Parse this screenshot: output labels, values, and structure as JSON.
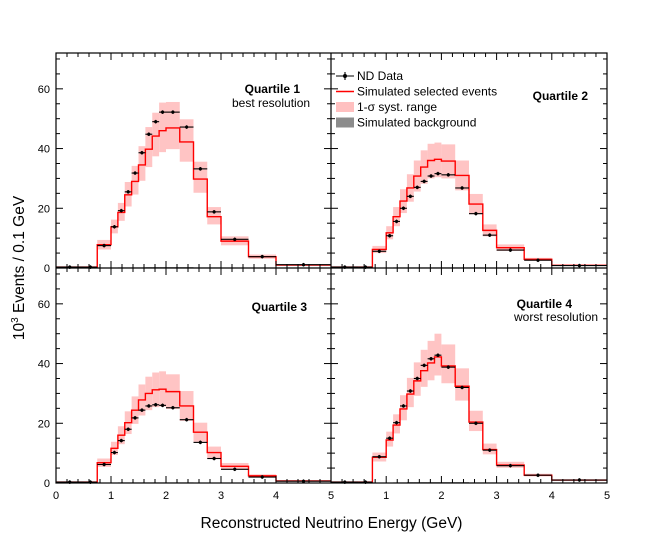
{
  "chart_data": {
    "type": "step-histogram-grid",
    "xlabel": "Reconstructed Neutrino Energy (GeV)",
    "ylabel_pre": "10",
    "ylabel_exp": "3",
    "ylabel_post": " Events / 0.1 GeV",
    "xlim": [
      0,
      5
    ],
    "ylim": [
      0,
      72
    ],
    "xticks": [
      0,
      1,
      2,
      3,
      4,
      5
    ],
    "yticks": [
      0,
      20,
      40,
      60
    ],
    "legend": {
      "placement": "top-right of upper-left panel",
      "entries": [
        {
          "key": "data",
          "label": "ND Data",
          "color": "#000000"
        },
        {
          "key": "mc",
          "label": "Simulated selected events",
          "color": "#ff0000"
        },
        {
          "key": "syst",
          "label": "1-σ syst. range",
          "color": "#ffc0c0"
        },
        {
          "key": "bkg",
          "label": "Simulated background",
          "color": "#8c8c8c"
        }
      ]
    },
    "bin_edges": [
      0,
      0.5,
      0.75,
      1.0,
      1.125,
      1.25,
      1.375,
      1.5,
      1.625,
      1.75,
      1.875,
      2.0,
      2.25,
      2.5,
      2.75,
      3.0,
      3.5,
      4.0,
      5.0
    ],
    "panels": [
      {
        "id": "q1",
        "title": "Quartile 1",
        "subtitle": "best resolution",
        "data": [
          0.3,
          0.3,
          7.5,
          13.8,
          19.2,
          25.5,
          31.8,
          38.6,
          44.8,
          49.0,
          52.2,
          52.2,
          47.2,
          33.2,
          18.8,
          9.6,
          3.8,
          1.1,
          0.3
        ],
        "mc": [
          0.3,
          0.3,
          7.8,
          13.8,
          18.6,
          24.5,
          29.0,
          34.5,
          39.8,
          44.2,
          46.0,
          46.9,
          42.2,
          29.8,
          17.2,
          9.0,
          3.8,
          1.0,
          0.3
        ],
        "syst_lo": [
          0.2,
          0.2,
          6.2,
          11.6,
          15.8,
          20.6,
          24.6,
          29.2,
          33.8,
          37.4,
          38.8,
          39.8,
          35.6,
          25.2,
          14.6,
          7.6,
          3.1,
          0.8,
          0.2
        ],
        "syst_hi": [
          0.4,
          0.4,
          9.4,
          16.2,
          21.8,
          28.8,
          34.2,
          40.8,
          47.2,
          52.0,
          55.4,
          55.6,
          49.8,
          35.6,
          20.4,
          10.6,
          4.5,
          1.2,
          0.4
        ],
        "bkg": [
          0.0,
          0.0,
          0.1,
          0.1,
          0.2,
          0.2,
          0.2,
          0.2,
          0.3,
          0.3,
          0.3,
          0.3,
          0.3,
          0.2,
          0.2,
          0.1,
          0.1,
          0.0,
          0.0
        ]
      },
      {
        "id": "q2",
        "title": "Quartile 2",
        "subtitle": "",
        "data": [
          0.3,
          0.3,
          5.6,
          10.8,
          15.6,
          20.0,
          24.0,
          27.0,
          29.0,
          30.8,
          31.6,
          31.2,
          26.8,
          18.2,
          11.0,
          6.0,
          2.6,
          0.8,
          0.2
        ],
        "mc": [
          0.3,
          0.3,
          6.2,
          11.8,
          17.2,
          22.4,
          26.8,
          30.8,
          33.8,
          36.0,
          36.4,
          35.8,
          31.0,
          21.4,
          12.6,
          6.8,
          2.9,
          0.9,
          0.2
        ],
        "syst_lo": [
          0.2,
          0.2,
          5.0,
          9.6,
          14.0,
          18.4,
          22.2,
          25.6,
          28.2,
          30.0,
          30.4,
          30.0,
          26.0,
          18.0,
          10.6,
          5.7,
          2.4,
          0.7,
          0.1
        ],
        "syst_hi": [
          0.4,
          0.4,
          7.4,
          14.0,
          20.4,
          26.4,
          31.4,
          36.0,
          39.4,
          41.6,
          42.0,
          41.4,
          36.0,
          24.8,
          14.6,
          7.9,
          3.4,
          1.1,
          0.3
        ],
        "bkg": [
          0.0,
          0.0,
          0.1,
          0.1,
          0.2,
          0.2,
          0.2,
          0.2,
          0.2,
          0.2,
          0.2,
          0.2,
          0.2,
          0.2,
          0.1,
          0.1,
          0.1,
          0.0,
          0.0
        ]
      },
      {
        "id": "q3",
        "title": "Quartile 3",
        "subtitle": "",
        "data": [
          0.3,
          0.3,
          6.2,
          10.2,
          14.2,
          18.0,
          21.8,
          24.4,
          25.8,
          26.2,
          26.0,
          25.2,
          21.2,
          13.6,
          8.2,
          4.6,
          2.0,
          0.6,
          0.2
        ],
        "mc": [
          0.3,
          0.3,
          6.8,
          11.6,
          16.0,
          20.2,
          24.4,
          27.8,
          30.0,
          31.2,
          31.4,
          30.6,
          25.8,
          17.0,
          10.2,
          5.6,
          2.4,
          0.7,
          0.2
        ],
        "syst_lo": [
          0.2,
          0.2,
          5.4,
          9.4,
          13.0,
          16.4,
          19.8,
          22.6,
          24.4,
          25.4,
          25.6,
          24.8,
          20.8,
          13.8,
          8.2,
          4.6,
          1.9,
          0.5,
          0.1
        ],
        "syst_hi": [
          0.4,
          0.4,
          8.2,
          13.8,
          19.0,
          24.0,
          29.0,
          33.0,
          35.6,
          37.0,
          37.4,
          36.4,
          30.8,
          20.2,
          12.2,
          6.7,
          2.9,
          0.9,
          0.3
        ],
        "bkg": [
          0.0,
          0.0,
          0.1,
          0.1,
          0.2,
          0.2,
          0.2,
          0.2,
          0.2,
          0.2,
          0.2,
          0.2,
          0.2,
          0.1,
          0.1,
          0.1,
          0.0,
          0.0,
          0.0
        ]
      },
      {
        "id": "q4",
        "title": "Quartile 4",
        "subtitle": "worst resolution",
        "data": [
          0.3,
          0.3,
          8.8,
          15.0,
          20.2,
          25.8,
          30.8,
          35.0,
          39.4,
          41.6,
          42.8,
          38.8,
          32.0,
          20.0,
          11.0,
          5.8,
          2.6,
          1.0,
          0.4
        ],
        "mc": [
          0.3,
          0.3,
          8.6,
          14.4,
          19.4,
          24.8,
          29.8,
          34.2,
          37.6,
          40.2,
          42.2,
          39.2,
          32.4,
          20.4,
          11.2,
          6.0,
          2.6,
          1.0,
          0.4
        ],
        "syst_lo": [
          0.2,
          0.2,
          7.2,
          12.2,
          16.6,
          21.0,
          25.4,
          29.2,
          32.2,
          34.4,
          36.0,
          33.4,
          27.6,
          17.4,
          9.6,
          5.1,
          2.2,
          0.8,
          0.3
        ],
        "syst_hi": [
          0.4,
          0.4,
          10.2,
          17.2,
          23.0,
          29.4,
          35.2,
          40.4,
          44.6,
          47.6,
          50.0,
          46.4,
          38.4,
          24.2,
          13.2,
          7.1,
          3.1,
          1.2,
          0.5
        ],
        "bkg": [
          0.0,
          0.0,
          0.1,
          0.1,
          0.2,
          0.2,
          0.3,
          0.3,
          0.3,
          0.3,
          0.3,
          0.3,
          0.3,
          0.2,
          0.2,
          0.1,
          0.1,
          0.0,
          0.0
        ]
      }
    ]
  }
}
